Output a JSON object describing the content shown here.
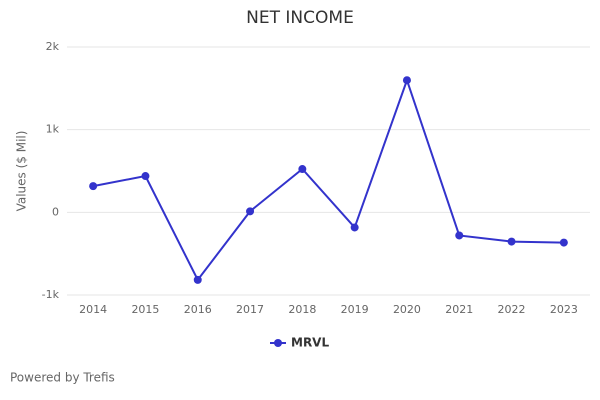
{
  "chart_data": {
    "type": "line",
    "title": "NET INCOME",
    "y_label": "Values ($ Mil)",
    "categories": [
      "2014",
      "2015",
      "2016",
      "2017",
      "2018",
      "2019",
      "2020",
      "2021",
      "2022",
      "2023"
    ],
    "series": [
      {
        "name": "MRVL",
        "color": "#3333cc",
        "values": [
          317,
          439,
          -817,
          12,
          524,
          -183,
          1598,
          -280,
          -354,
          -366
        ]
      }
    ],
    "ylim": [
      -1000,
      2000
    ],
    "yticks": [
      {
        "value": -1000,
        "label": "-1k"
      },
      0,
      {
        "value": 1000,
        "label": "1k"
      },
      {
        "value": 2000,
        "label": "2k"
      }
    ],
    "grid": true,
    "legend": "bottom"
  },
  "footer": "Powered by Trefis"
}
